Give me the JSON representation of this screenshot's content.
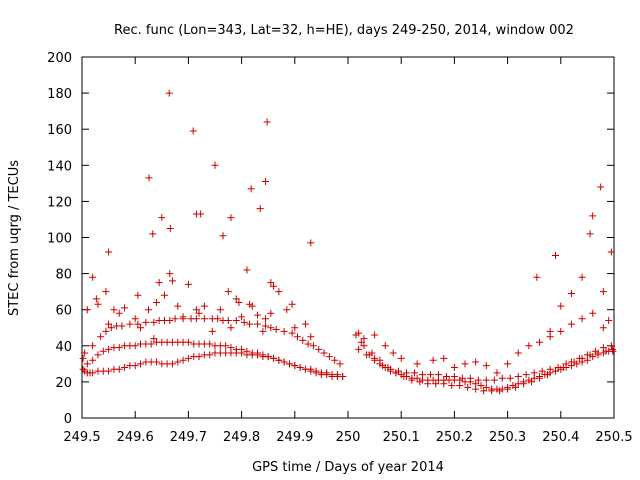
{
  "chart_data": {
    "type": "scatter",
    "title": "Rec. func (Lon=343, Lat=32, h=HE), days 249-250, 2014, window 002",
    "xlabel": "GPS time / Days of year 2014",
    "ylabel": "STEC from uqrg / TECUs",
    "xlim": [
      249.5,
      250.5
    ],
    "ylim": [
      0,
      200
    ],
    "xticks": [
      249.5,
      249.6,
      249.7,
      249.8,
      249.9,
      250,
      250.1,
      250.2,
      250.3,
      250.4,
      250.5
    ],
    "xtick_labels": [
      "249.5",
      "249.6",
      "249.7",
      "249.8",
      "249.9",
      "250",
      "250.1",
      "250.2",
      "250.3",
      "250.4",
      "250.5"
    ],
    "yticks": [
      0,
      20,
      40,
      60,
      80,
      100,
      120,
      140,
      160,
      180,
      200
    ],
    "ytick_labels": [
      "0",
      "20",
      "40",
      "60",
      "80",
      "100",
      "120",
      "140",
      "160",
      "180",
      "200"
    ],
    "grid": false,
    "marker": "plus",
    "color": "#cc0000",
    "series": [
      {
        "x": [
          249.502,
          249.505,
          249.51,
          249.515,
          249.52,
          249.53,
          249.54,
          249.55,
          249.56,
          249.57,
          249.58,
          249.59,
          249.6,
          249.61,
          249.62,
          249.63,
          249.64,
          249.65,
          249.66,
          249.67,
          249.68,
          249.69,
          249.7,
          249.71,
          249.72,
          249.73,
          249.74,
          249.75,
          249.76,
          249.77,
          249.78,
          249.79,
          249.8,
          249.81,
          249.82,
          249.83,
          249.84,
          249.85,
          249.86,
          249.87,
          249.88,
          249.89,
          249.9,
          249.91,
          249.92,
          249.93,
          249.94,
          249.95,
          249.96,
          249.97,
          249.98,
          249.99,
          249.502,
          249.51,
          249.52,
          249.53,
          249.54,
          249.55,
          249.56,
          249.57,
          249.58,
          249.59,
          249.6,
          249.61,
          249.62,
          249.63,
          249.64,
          249.65,
          249.66,
          249.67,
          249.68,
          249.69,
          249.7,
          249.71,
          249.72,
          249.73,
          249.74,
          249.75,
          249.76,
          249.77,
          249.78,
          249.79,
          249.8,
          249.81,
          249.82,
          249.83,
          249.84,
          249.85,
          249.86,
          249.87,
          249.88,
          249.89,
          249.9,
          249.91,
          249.92,
          249.93,
          249.94,
          249.95,
          249.96,
          249.97,
          249.98,
          249.99,
          249.505,
          249.52,
          249.535,
          249.545,
          249.555,
          249.565,
          249.575,
          249.59,
          249.605,
          249.62,
          249.635,
          249.645,
          249.655,
          249.665,
          249.675,
          249.69,
          249.705,
          249.715,
          249.73,
          249.745,
          249.755,
          249.765,
          249.775,
          249.79,
          249.805,
          249.815,
          249.83,
          249.845,
          249.855,
          249.865,
          249.88,
          249.895,
          249.905,
          249.915,
          249.925,
          249.935,
          249.945,
          249.955,
          249.965,
          249.975,
          249.985,
          249.51,
          249.52,
          249.53,
          249.545,
          249.55,
          249.56,
          249.57,
          249.58,
          249.6,
          249.61,
          249.625,
          249.635,
          249.64,
          249.645,
          249.655,
          249.665,
          249.67,
          249.68,
          249.69,
          249.7,
          249.715,
          249.72,
          249.73,
          249.745,
          249.76,
          249.775,
          249.78,
          249.79,
          249.795,
          249.8,
          249.815,
          249.82,
          249.83,
          249.84,
          249.845,
          249.855,
          249.86,
          249.87,
          249.885,
          249.895,
          249.9,
          249.92,
          249.93,
          249.527,
          249.55,
          249.605,
          249.626,
          249.633,
          249.65,
          249.664,
          249.666,
          249.709,
          249.715,
          249.723,
          249.75,
          249.765,
          249.78,
          249.81,
          249.818,
          249.835,
          249.845,
          249.848,
          249.855,
          249.93,
          250.02,
          250.03,
          250.04,
          250.05,
          250.06,
          250.07,
          250.08,
          250.09,
          250.1,
          250.11,
          250.12,
          250.13,
          250.14,
          250.15,
          250.16,
          250.17,
          250.18,
          250.19,
          250.2,
          250.21,
          250.22,
          250.23,
          250.24,
          250.25,
          250.26,
          250.27,
          250.28,
          250.29,
          250.3,
          250.31,
          250.32,
          250.33,
          250.34,
          250.35,
          250.36,
          250.37,
          250.38,
          250.39,
          250.4,
          250.41,
          250.42,
          250.43,
          250.44,
          250.45,
          250.46,
          250.47,
          250.48,
          250.49,
          250.498,
          250.02,
          250.035,
          250.05,
          250.065,
          250.08,
          250.095,
          250.11,
          250.125,
          250.14,
          250.155,
          250.17,
          250.185,
          250.2,
          250.215,
          250.23,
          250.245,
          250.26,
          250.275,
          250.29,
          250.305,
          250.32,
          250.335,
          250.35,
          250.365,
          250.38,
          250.395,
          250.41,
          250.425,
          250.44,
          250.455,
          250.47,
          250.485,
          250.497,
          250.025,
          250.045,
          250.06,
          250.075,
          250.09,
          250.105,
          250.12,
          250.135,
          250.15,
          250.165,
          250.18,
          250.195,
          250.21,
          250.225,
          250.24,
          250.255,
          250.27,
          250.285,
          250.3,
          250.315,
          250.33,
          250.345,
          250.36,
          250.375,
          250.39,
          250.405,
          250.42,
          250.435,
          250.45,
          250.465,
          250.48,
          250.495,
          250.015,
          250.03,
          250.05,
          250.07,
          250.085,
          250.1,
          250.13,
          250.16,
          250.18,
          250.2,
          250.22,
          250.24,
          250.26,
          250.28,
          250.3,
          250.32,
          250.34,
          250.36,
          250.38,
          250.4,
          250.42,
          250.44,
          250.46,
          250.48,
          250.355,
          250.38,
          250.39,
          250.4,
          250.42,
          250.44,
          250.455,
          250.46,
          250.475,
          250.48,
          250.49,
          250.495
        ],
        "y": [
          27,
          26,
          25,
          25,
          25,
          26,
          26,
          26,
          27,
          27,
          28,
          29,
          29,
          30,
          31,
          31,
          31,
          30,
          30,
          30,
          31,
          32,
          33,
          34,
          34,
          35,
          35,
          36,
          36,
          36,
          36,
          36,
          36,
          35,
          35,
          35,
          34,
          34,
          33,
          32,
          31,
          30,
          29,
          28,
          27,
          26,
          25,
          24,
          24,
          23,
          23,
          23,
          33,
          30,
          32,
          35,
          37,
          38,
          39,
          39,
          40,
          40,
          40,
          41,
          41,
          41,
          42,
          42,
          42,
          42,
          42,
          42,
          42,
          41,
          41,
          41,
          41,
          40,
          40,
          40,
          39,
          38,
          38,
          37,
          36,
          36,
          35,
          34,
          33,
          32,
          31,
          30,
          29,
          28,
          27,
          27,
          26,
          25,
          25,
          24,
          24,
          23,
          36,
          40,
          45,
          48,
          50,
          51,
          51,
          52,
          52,
          53,
          53,
          54,
          54,
          54,
          55,
          55,
          55,
          55,
          55,
          55,
          55,
          54,
          54,
          54,
          53,
          52,
          52,
          51,
          50,
          49,
          48,
          47,
          45,
          43,
          41,
          40,
          38,
          36,
          34,
          32,
          30,
          60,
          78,
          63,
          70,
          52,
          60,
          58,
          61,
          55,
          50,
          60,
          44,
          64,
          75,
          68,
          80,
          76,
          62,
          56,
          74,
          60,
          58,
          62,
          48,
          60,
          70,
          50,
          66,
          64,
          56,
          63,
          62,
          57,
          48,
          55,
          58,
          73,
          70,
          60,
          63,
          50,
          52,
          45,
          66,
          92,
          68,
          133,
          102,
          111,
          180,
          105,
          159,
          113,
          113,
          140,
          101,
          111,
          82,
          127,
          116,
          131,
          164,
          75,
          97,
          47,
          40,
          35,
          33,
          30,
          28,
          26,
          25,
          24,
          23,
          22,
          22,
          21,
          21,
          21,
          21,
          21,
          21,
          21,
          21,
          20,
          20,
          19,
          18,
          17,
          16,
          16,
          16,
          17,
          18,
          19,
          20,
          21,
          22,
          23,
          24,
          25,
          26,
          27,
          28,
          29,
          30,
          31,
          32,
          34,
          35,
          36,
          37,
          37,
          38,
          35,
          32,
          29,
          27,
          26,
          25,
          25,
          24,
          24,
          24,
          23,
          23,
          22,
          22,
          21,
          21,
          21,
          22,
          22,
          23,
          24,
          25,
          26,
          27,
          28,
          30,
          31,
          33,
          35,
          36,
          37,
          38,
          42,
          36,
          32,
          28,
          25,
          23,
          21,
          20,
          19,
          19,
          19,
          18,
          18,
          17,
          16,
          15,
          15,
          15,
          16,
          17,
          19,
          20,
          22,
          24,
          26,
          28,
          31,
          33,
          35,
          37,
          39,
          40,
          46,
          44,
          46,
          40,
          36,
          33,
          30,
          32,
          33,
          28,
          30,
          31,
          29,
          25,
          30,
          36,
          40,
          42,
          45,
          48,
          52,
          55,
          58,
          50,
          78,
          48,
          90,
          62,
          69,
          78,
          102,
          112,
          128,
          70,
          54,
          92
        ]
      }
    ]
  }
}
